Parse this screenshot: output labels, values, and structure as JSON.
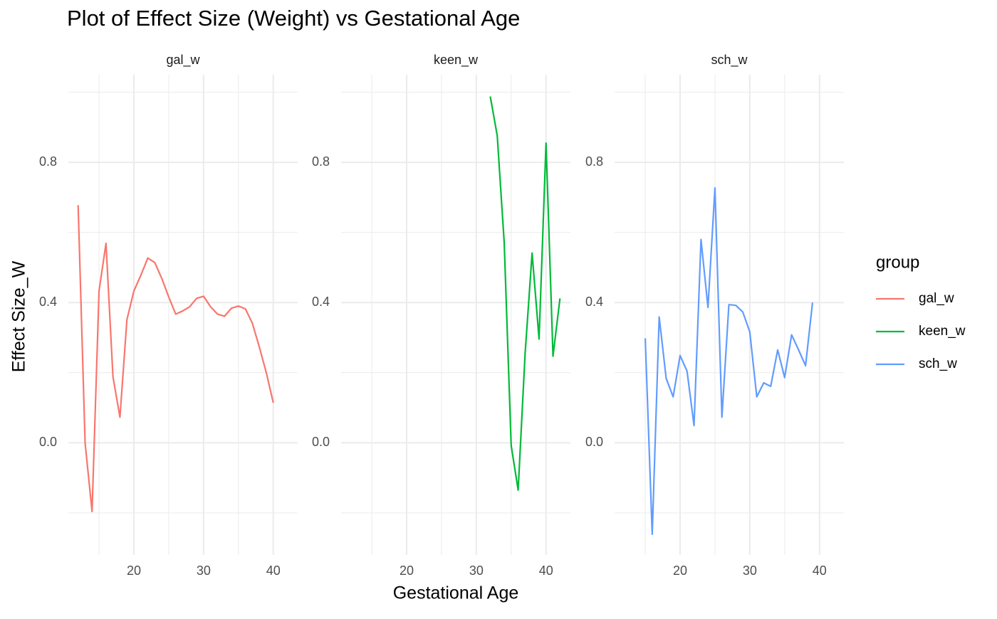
{
  "chart_data": {
    "type": "line",
    "title": "Plot of Effect Size (Weight) vs Gestational Age",
    "x_label": "Gestational Age",
    "y_label": "Effect Size_W",
    "legend_title": "group",
    "legend_position": "right",
    "facet_by_series": true,
    "grid": true,
    "xlim": [
      10.6,
      43.5
    ],
    "ylim": [
      -0.32,
      1.05
    ],
    "xticks": [
      20,
      30,
      40
    ],
    "yticks": [
      {
        "value": 0,
        "label": "0.0"
      },
      0.4,
      0.8
    ],
    "x_minor_ticks": [
      15,
      25,
      35
    ],
    "y_minor_ticks": [
      -0.2,
      0.2,
      0.6,
      1.0
    ],
    "series": [
      {
        "name": "gal_w",
        "color": "#F8766D",
        "x": [
          12,
          13,
          14,
          15,
          16,
          17,
          18,
          19,
          20,
          21,
          22,
          23,
          24,
          25,
          26,
          27,
          28,
          29,
          30,
          31,
          32,
          33,
          34,
          35,
          36,
          37,
          38,
          39,
          40
        ],
        "values": [
          0.678,
          0.0,
          -0.196,
          0.433,
          0.569,
          0.188,
          0.073,
          0.351,
          0.433,
          0.478,
          0.527,
          0.514,
          0.469,
          0.416,
          0.367,
          0.376,
          0.388,
          0.412,
          0.418,
          0.388,
          0.367,
          0.361,
          0.384,
          0.39,
          0.382,
          0.341,
          0.273,
          0.2,
          0.114
        ]
      },
      {
        "name": "keen_w",
        "color": "#00BA38",
        "x": [
          32,
          33,
          34,
          35,
          36,
          37,
          38,
          39,
          40,
          41,
          42
        ],
        "values": [
          0.988,
          0.876,
          0.571,
          -0.008,
          -0.135,
          0.255,
          0.541,
          0.296,
          0.855,
          0.247,
          0.412
        ]
      },
      {
        "name": "sch_w",
        "color": "#619CFF",
        "x": [
          15,
          16,
          17,
          18,
          19,
          20,
          21,
          22,
          23,
          24,
          25,
          26,
          27,
          28,
          29,
          30,
          31,
          32,
          33,
          34,
          35,
          36,
          37,
          38,
          39
        ],
        "values": [
          0.298,
          -0.261,
          0.359,
          0.184,
          0.131,
          0.249,
          0.204,
          0.049,
          0.58,
          0.386,
          0.727,
          0.073,
          0.394,
          0.392,
          0.373,
          0.316,
          0.131,
          0.171,
          0.161,
          0.265,
          0.186,
          0.308,
          0.265,
          0.22,
          0.4
        ]
      }
    ]
  }
}
